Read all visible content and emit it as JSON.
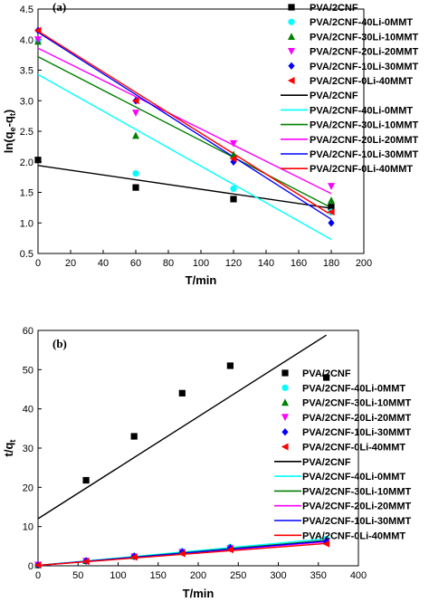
{
  "colors": {
    "PVA/2CNF": "#000000",
    "PVA/2CNF-40Li-0MMT": "#00ffff",
    "PVA/2CNF-30Li-10MMT": "#008000",
    "PVA/2CNF-20Li-20MMT": "#ff00ff",
    "PVA/2CNF-10Li-30MMT": "#0000ff",
    "PVA/2CNF-0Li-40MMT": "#ff0000"
  },
  "markers": {
    "PVA/2CNF": "square",
    "PVA/2CNF-40Li-0MMT": "circle",
    "PVA/2CNF-30Li-10MMT": "triangle-up",
    "PVA/2CNF-20Li-20MMT": "triangle-down",
    "PVA/2CNF-10Li-30MMT": "diamond",
    "PVA/2CNF-0Li-40MMT": "triangle-left"
  },
  "chart_data": [
    {
      "type": "scatter",
      "panel_label": "(a)",
      "xlabel": "T/min",
      "ylabel": "ln(q_e-q_t)",
      "xlim": [
        0,
        200
      ],
      "ylim": [
        0.5,
        4.5
      ],
      "xticks": [
        0,
        20,
        40,
        60,
        80,
        100,
        120,
        140,
        160,
        180,
        200
      ],
      "yticks": [
        0.5,
        1.0,
        1.5,
        2.0,
        2.5,
        3.0,
        3.5,
        4.0,
        4.5
      ],
      "grid": false,
      "legend_position": "top-right",
      "series": [
        {
          "name": "PVA/2CNF",
          "x": [
            0,
            60,
            120,
            180
          ],
          "y": [
            2.03,
            1.58,
            1.39,
            1.26
          ]
        },
        {
          "name": "PVA/2CNF-40Li-0MMT",
          "x": [
            0,
            60,
            120,
            180
          ],
          "y": [
            3.98,
            1.81,
            1.56,
            1.18
          ]
        },
        {
          "name": "PVA/2CNF-30Li-10MMT",
          "x": [
            0,
            60,
            120,
            180
          ],
          "y": [
            3.97,
            2.43,
            2.12,
            1.37
          ]
        },
        {
          "name": "PVA/2CNF-20Li-20MMT",
          "x": [
            0,
            60,
            120,
            180
          ],
          "y": [
            4.0,
            2.8,
            2.3,
            1.6
          ]
        },
        {
          "name": "PVA/2CNF-10Li-30MMT",
          "x": [
            0,
            60,
            120,
            180
          ],
          "y": [
            4.15,
            3.0,
            2.0,
            1.0
          ]
        },
        {
          "name": "PVA/2CNF-0Li-40MMT",
          "x": [
            0,
            60,
            120,
            180
          ],
          "y": [
            4.15,
            3.0,
            2.05,
            1.18
          ]
        }
      ],
      "fits": [
        {
          "name": "PVA/2CNF",
          "x": [
            0,
            180
          ],
          "y": [
            1.94,
            1.24
          ]
        },
        {
          "name": "PVA/2CNF-40Li-0MMT",
          "x": [
            0,
            180
          ],
          "y": [
            3.43,
            0.73
          ]
        },
        {
          "name": "PVA/2CNF-30Li-10MMT",
          "x": [
            0,
            180
          ],
          "y": [
            3.72,
            1.25
          ]
        },
        {
          "name": "PVA/2CNF-20Li-20MMT",
          "x": [
            0,
            180
          ],
          "y": [
            3.86,
            1.48
          ]
        },
        {
          "name": "PVA/2CNF-10Li-30MMT",
          "x": [
            0,
            180
          ],
          "y": [
            4.12,
            1.06
          ]
        },
        {
          "name": "PVA/2CNF-0Li-40MMT",
          "x": [
            0,
            180
          ],
          "y": [
            4.14,
            1.13
          ]
        }
      ]
    },
    {
      "type": "scatter",
      "panel_label": "(b)",
      "xlabel": "T/min",
      "ylabel": "t/q_t",
      "xlim": [
        0,
        400
      ],
      "ylim": [
        0,
        60
      ],
      "xticks": [
        0,
        50,
        100,
        150,
        200,
        250,
        300,
        350,
        400
      ],
      "yticks": [
        0,
        10,
        20,
        30,
        40,
        50,
        60
      ],
      "grid": false,
      "legend_position": "right",
      "series": [
        {
          "name": "PVA/2CNF",
          "x": [
            60,
            120,
            180,
            240,
            360
          ],
          "y": [
            21.8,
            33.0,
            44.0,
            51.0,
            48.0
          ]
        },
        {
          "name": "PVA/2CNF-40Li-0MMT",
          "x": [
            0,
            60,
            120,
            180,
            240,
            360
          ],
          "y": [
            0.2,
            1.3,
            2.5,
            3.7,
            4.8,
            6.8
          ]
        },
        {
          "name": "PVA/2CNF-30Li-10MMT",
          "x": [
            0,
            60,
            120,
            180,
            240,
            360
          ],
          "y": [
            0.2,
            1.3,
            2.5,
            3.6,
            4.7,
            6.4
          ]
        },
        {
          "name": "PVA/2CNF-20Li-20MMT",
          "x": [
            0,
            60,
            120,
            180,
            240,
            360
          ],
          "y": [
            0.2,
            1.2,
            2.3,
            3.4,
            4.4,
            6.0
          ]
        },
        {
          "name": "PVA/2CNF-10Li-30MMT",
          "x": [
            0,
            60,
            120,
            180,
            240,
            360
          ],
          "y": [
            0.2,
            1.2,
            2.4,
            3.5,
            4.5,
            6.2
          ]
        },
        {
          "name": "PVA/2CNF-0Li-40MMT",
          "x": [
            0,
            60,
            120,
            180,
            240,
            360
          ],
          "y": [
            0.2,
            1.1,
            2.2,
            3.1,
            4.1,
            5.6
          ]
        }
      ],
      "fits": [
        {
          "name": "PVA/2CNF",
          "x": [
            0,
            360
          ],
          "y": [
            12.0,
            58.8
          ]
        },
        {
          "name": "PVA/2CNF-40Li-0MMT",
          "x": [
            0,
            360
          ],
          "y": [
            0.1,
            6.9
          ]
        },
        {
          "name": "PVA/2CNF-30Li-10MMT",
          "x": [
            0,
            360
          ],
          "y": [
            0.1,
            6.5
          ]
        },
        {
          "name": "PVA/2CNF-20Li-20MMT",
          "x": [
            0,
            360
          ],
          "y": [
            0.1,
            6.1
          ]
        },
        {
          "name": "PVA/2CNF-10Li-30MMT",
          "x": [
            0,
            360
          ],
          "y": [
            0.1,
            6.3
          ]
        },
        {
          "name": "PVA/2CNF-0Li-40MMT",
          "x": [
            0,
            360
          ],
          "y": [
            0.1,
            5.7
          ]
        }
      ]
    }
  ]
}
